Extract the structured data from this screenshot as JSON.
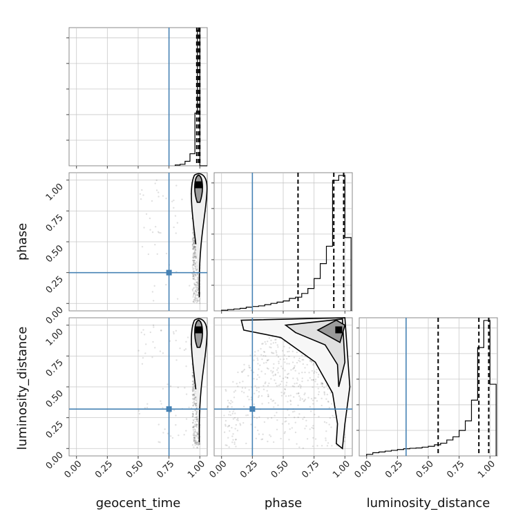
{
  "chart_data": {
    "type": "corner",
    "parameters": [
      "geocent_time",
      "phase",
      "luminosity_distance"
    ],
    "axis_ticks": [
      "0.00",
      "0.25",
      "0.50",
      "0.75",
      "1.00"
    ],
    "axis_range": [
      -0.06,
      1.06
    ],
    "truths": [
      0.75,
      0.25,
      0.32
    ],
    "truth_color": "#4682b4",
    "grid": true,
    "histograms": [
      {
        "parameter": "geocent_time",
        "bin_edges": [
          0.8,
          0.84,
          0.88,
          0.92,
          0.96,
          0.98,
          1.0,
          1.06
        ],
        "counts": [
          0.5,
          1,
          3,
          8,
          35,
          90,
          0
        ],
        "quantiles": [
          0.975,
          0.99,
          1.0
        ]
      },
      {
        "parameter": "phase",
        "bin_edges": [
          0.0,
          0.05,
          0.1,
          0.15,
          0.2,
          0.25,
          0.3,
          0.35,
          0.4,
          0.45,
          0.5,
          0.55,
          0.6,
          0.65,
          0.7,
          0.75,
          0.8,
          0.85,
          0.9,
          0.95,
          1.0,
          1.05
        ],
        "counts": [
          0.5,
          1,
          1.5,
          2,
          3,
          3.5,
          4,
          5,
          6,
          7,
          8,
          10,
          11,
          14,
          18,
          26,
          38,
          52,
          105,
          109,
          59
        ],
        "quantiles": [
          0.62,
          0.91,
          0.99
        ]
      },
      {
        "parameter": "luminosity_distance",
        "bin_edges": [
          0.0,
          0.05,
          0.1,
          0.15,
          0.2,
          0.25,
          0.3,
          0.35,
          0.4,
          0.45,
          0.5,
          0.55,
          0.6,
          0.65,
          0.7,
          0.75,
          0.8,
          0.85,
          0.9,
          0.95,
          1.0,
          1.05
        ],
        "counts": [
          1,
          2,
          2.5,
          3,
          3.5,
          4,
          4.5,
          4.8,
          5,
          5.5,
          6,
          7,
          8,
          10,
          12,
          16,
          22,
          35,
          68,
          85,
          45
        ],
        "quantiles": [
          0.58,
          0.91,
          0.99
        ]
      }
    ]
  }
}
